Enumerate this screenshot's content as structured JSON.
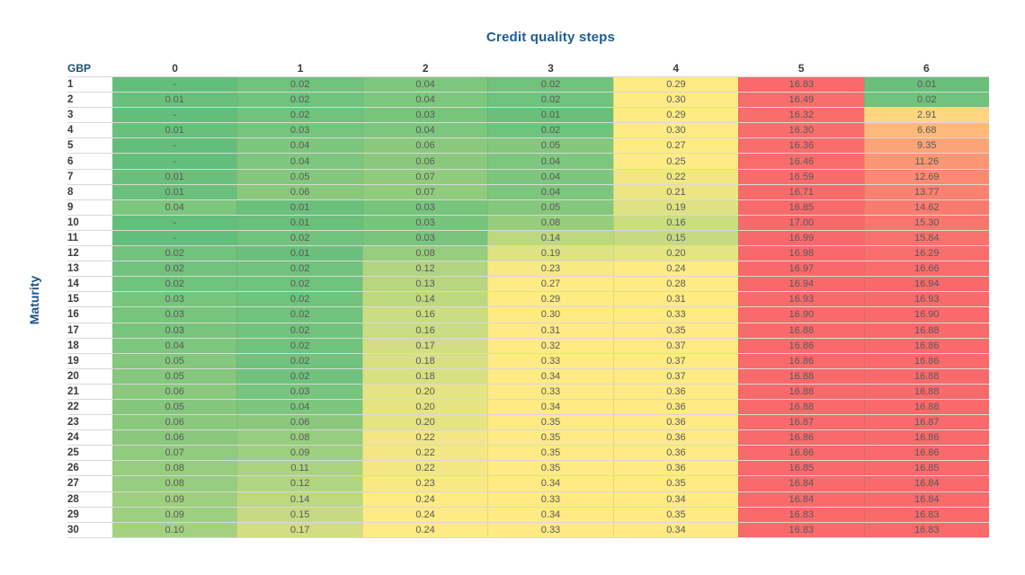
{
  "colors": {
    "scale_min": "#63BE7B",
    "scale_mid": "#FFEB84",
    "scale_max": "#F8696B",
    "title_text": "#1E5C97",
    "axis_label_text": "#1F5384",
    "corner_text": "#1C4E70",
    "header_text": "#3B3B3B",
    "cell_text": "#595959",
    "grid_line": "#BFBFBF",
    "background": "#FFFFFF"
  },
  "chart_data": {
    "type": "heatmap",
    "title": "Credit quality steps",
    "ylabel": "Maturity",
    "xlabel": "Credit quality steps",
    "row_header": "GBP",
    "legend_position": "none",
    "x_categories": [
      "0",
      "1",
      "2",
      "3",
      "4",
      "5",
      "6"
    ],
    "y_categories": [
      "1",
      "2",
      "3",
      "4",
      "5",
      "6",
      "7",
      "8",
      "9",
      "10",
      "11",
      "12",
      "13",
      "14",
      "15",
      "16",
      "17",
      "18",
      "19",
      "20",
      "21",
      "22",
      "23",
      "24",
      "25",
      "26",
      "27",
      "28",
      "29",
      "30"
    ],
    "values_display": [
      [
        "-",
        "0.02",
        "0.04",
        "0.02",
        "0.29",
        "16.83",
        "0.01"
      ],
      [
        "0.01",
        "0.02",
        "0.04",
        "0.02",
        "0.30",
        "16.49",
        "0.02"
      ],
      [
        "-",
        "0.02",
        "0.03",
        "0.01",
        "0.29",
        "16.32",
        "2.91"
      ],
      [
        "0.01",
        "0.03",
        "0.04",
        "0.02",
        "0.30",
        "16.30",
        "6.68"
      ],
      [
        "-",
        "0.04",
        "0.06",
        "0.05",
        "0.27",
        "16.36",
        "9.35"
      ],
      [
        "-",
        "0.04",
        "0.06",
        "0.04",
        "0.25",
        "16.46",
        "11.26"
      ],
      [
        "0.01",
        "0.05",
        "0.07",
        "0.04",
        "0.22",
        "16.59",
        "12.69"
      ],
      [
        "0.01",
        "0.06",
        "0.07",
        "0.04",
        "0.21",
        "16.71",
        "13.77"
      ],
      [
        "0.04",
        "0.01",
        "0.03",
        "0.05",
        "0.19",
        "16.85",
        "14.62"
      ],
      [
        "-",
        "0.01",
        "0.03",
        "0.08",
        "0.16",
        "17.00",
        "15.30"
      ],
      [
        "-",
        "0.02",
        "0.03",
        "0.14",
        "0.15",
        "16.99",
        "15.84"
      ],
      [
        "0.02",
        "0.01",
        "0.08",
        "0.19",
        "0.20",
        "16.98",
        "16.29"
      ],
      [
        "0.02",
        "0.02",
        "0.12",
        "0.23",
        "0.24",
        "16.97",
        "16.66"
      ],
      [
        "0.02",
        "0.02",
        "0.13",
        "0.27",
        "0.28",
        "16.94",
        "16.94"
      ],
      [
        "0.03",
        "0.02",
        "0.14",
        "0.29",
        "0.31",
        "16.93",
        "16.93"
      ],
      [
        "0.03",
        "0.02",
        "0.16",
        "0.30",
        "0.33",
        "16.90",
        "16.90"
      ],
      [
        "0.03",
        "0.02",
        "0.16",
        "0.31",
        "0.35",
        "16.88",
        "16.88"
      ],
      [
        "0.04",
        "0.02",
        "0.17",
        "0.32",
        "0.37",
        "16.86",
        "16.86"
      ],
      [
        "0.05",
        "0.02",
        "0.18",
        "0.33",
        "0.37",
        "16.86",
        "16.86"
      ],
      [
        "0.05",
        "0.02",
        "0.18",
        "0.34",
        "0.37",
        "16.88",
        "16.88"
      ],
      [
        "0.06",
        "0.03",
        "0.20",
        "0.33",
        "0.36",
        "16.88",
        "16.88"
      ],
      [
        "0.05",
        "0.04",
        "0.20",
        "0.34",
        "0.36",
        "16.88",
        "16.88"
      ],
      [
        "0.06",
        "0.06",
        "0.20",
        "0.35",
        "0.36",
        "16.87",
        "16.87"
      ],
      [
        "0.06",
        "0.08",
        "0.22",
        "0.35",
        "0.36",
        "16.86",
        "16.86"
      ],
      [
        "0.07",
        "0.09",
        "0.22",
        "0.35",
        "0.36",
        "16.86",
        "16.86"
      ],
      [
        "0.08",
        "0.11",
        "0.22",
        "0.35",
        "0.36",
        "16.85",
        "16.85"
      ],
      [
        "0.08",
        "0.12",
        "0.23",
        "0.34",
        "0.35",
        "16.84",
        "16.84"
      ],
      [
        "0.09",
        "0.14",
        "0.24",
        "0.33",
        "0.34",
        "16.84",
        "16.84"
      ],
      [
        "0.09",
        "0.15",
        "0.24",
        "0.34",
        "0.35",
        "16.83",
        "16.83"
      ],
      [
        "0.10",
        "0.17",
        "0.24",
        "0.33",
        "0.34",
        "16.83",
        "16.83"
      ]
    ],
    "value_range": {
      "min": 0,
      "mid": 0.24,
      "max": 17.0
    },
    "dash_means": "zero / negligible value"
  }
}
